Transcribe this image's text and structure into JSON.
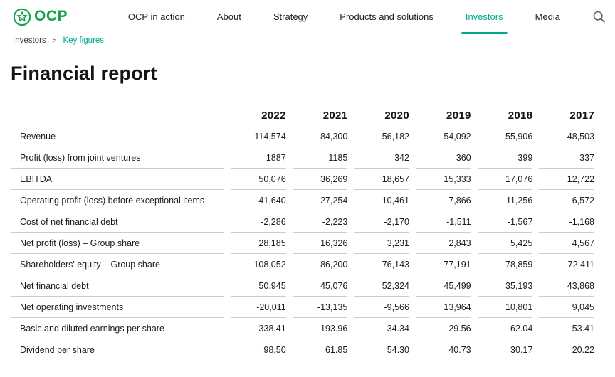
{
  "brand": {
    "name": "OCP",
    "logo_icon": "ocp-star-circle-logo-icon"
  },
  "colors": {
    "brand_green": "#16A24A",
    "accent_teal": "#00A88B",
    "row_border": "#CCCCCC",
    "text": "#1D1D1D"
  },
  "nav": {
    "items": [
      {
        "label": "OCP in action",
        "active": false
      },
      {
        "label": "About",
        "active": false
      },
      {
        "label": "Strategy",
        "active": false
      },
      {
        "label": "Products and solutions",
        "active": false
      },
      {
        "label": "Investors",
        "active": true
      },
      {
        "label": "Media",
        "active": false
      }
    ],
    "search_icon": "search-icon"
  },
  "breadcrumb": {
    "parent": "Investors",
    "separator": ">",
    "current": "Key figures"
  },
  "page": {
    "title": "Financial report"
  },
  "chart_data": {
    "type": "table",
    "title": "Financial report",
    "years": [
      "2022",
      "2021",
      "2020",
      "2019",
      "2018",
      "2017"
    ],
    "rows": [
      {
        "label": "Revenue",
        "values": [
          "114,574",
          "84,300",
          "56,182",
          "54,092",
          "55,906",
          "48,503"
        ]
      },
      {
        "label": "Profit (loss) from joint ventures",
        "values": [
          "1887",
          "1185",
          "342",
          "360",
          "399",
          "337"
        ]
      },
      {
        "label": "EBITDA",
        "values": [
          "50,076",
          "36,269",
          "18,657",
          "15,333",
          "17,076",
          "12,722"
        ]
      },
      {
        "label": "Operating profit (loss) before exceptional items",
        "values": [
          "41,640",
          "27,254",
          "10,461",
          "7,866",
          "11,256",
          "6,572"
        ]
      },
      {
        "label": "Cost of net financial debt",
        "values": [
          "-2,286",
          "-2,223",
          "-2,170",
          "-1,511",
          "-1,567",
          "-1,168"
        ]
      },
      {
        "label": "Net profit (loss) – Group share",
        "values": [
          "28,185",
          "16,326",
          "3,231",
          "2,843",
          "5,425",
          "4,567"
        ]
      },
      {
        "label": "Shareholders' equity – Group share",
        "values": [
          "108,052",
          "86,200",
          "76,143",
          "77,191",
          "78,859",
          "72,411"
        ]
      },
      {
        "label": "Net financial debt",
        "values": [
          "50,945",
          "45,076",
          "52,324",
          "45,499",
          "35,193",
          "43,868"
        ]
      },
      {
        "label": "Net operating investments",
        "values": [
          "-20,011",
          "-13,135",
          "-9,566",
          "13,964",
          "10,801",
          "9,045"
        ]
      },
      {
        "label": "Basic and diluted earnings per share",
        "values": [
          "338.41",
          "193.96",
          "34.34",
          "29.56",
          "62.04",
          "53.41"
        ]
      },
      {
        "label": "Dividend per share",
        "values": [
          "98.50",
          "61.85",
          "54.30",
          "40.73",
          "30.17",
          "20.22"
        ]
      }
    ]
  }
}
